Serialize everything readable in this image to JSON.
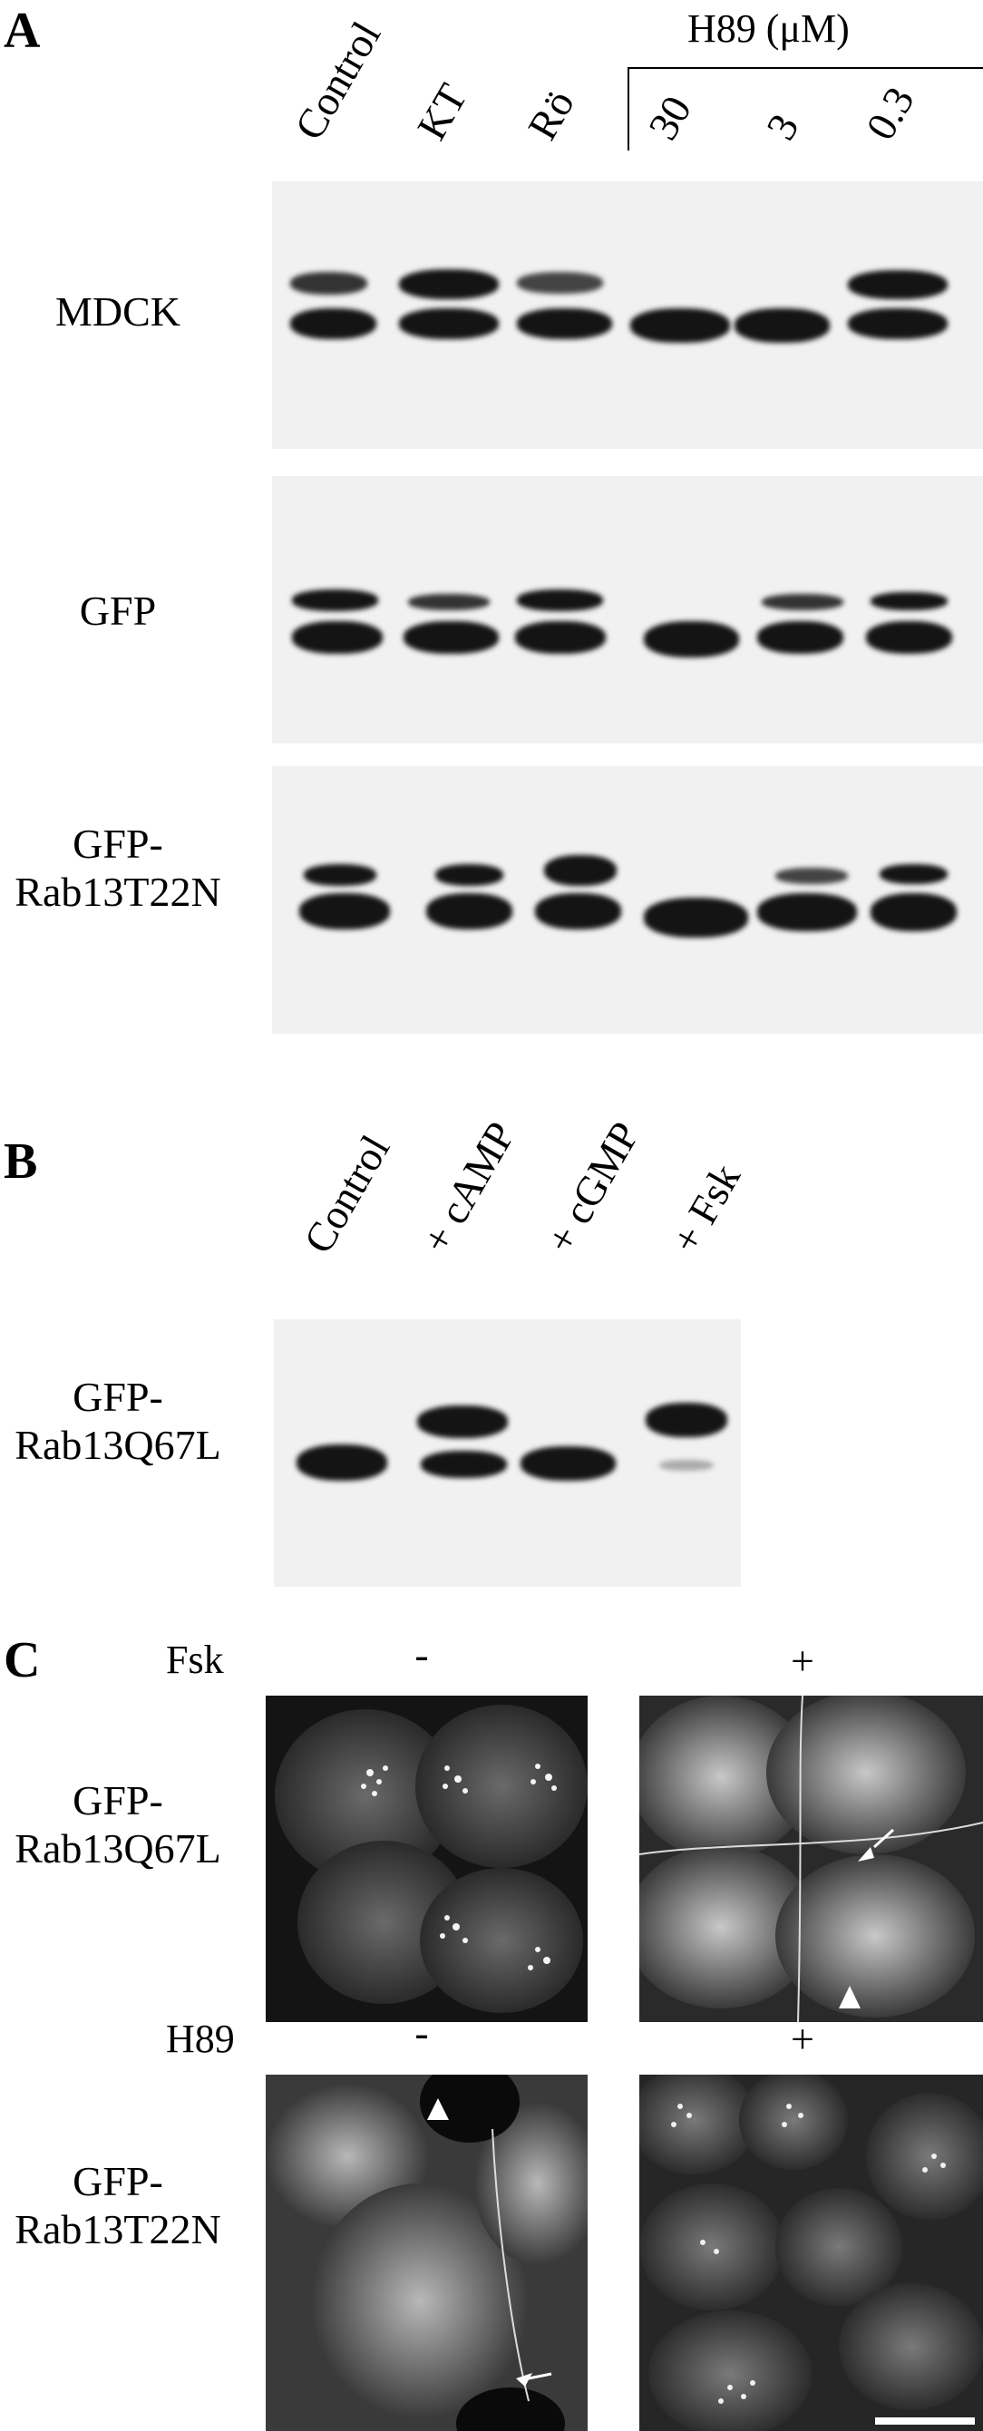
{
  "panelA": {
    "letter": "A",
    "h89_header": "H89 (μM)",
    "lanes": [
      "Control",
      "KT",
      "Rö"
    ],
    "h89_lanes": [
      "30",
      "3",
      "0.3"
    ],
    "rows": [
      {
        "label_line1": "MDCK",
        "label_line2": ""
      },
      {
        "label_line1": "GFP",
        "label_line2": ""
      },
      {
        "label_line1": "GFP-",
        "label_line2": "Rab13T22N"
      }
    ]
  },
  "panelB": {
    "letter": "B",
    "lanes": [
      "Control",
      "+ cAMP",
      "+ cGMP",
      "+ Fsk"
    ],
    "row": {
      "label_line1": "GFP-",
      "label_line2": "Rab13Q67L"
    }
  },
  "panelC": {
    "letter": "C",
    "row1": {
      "condition": "Fsk",
      "minus": "-",
      "plus": "+",
      "label_line1": "GFP-",
      "label_line2": "Rab13Q67L"
    },
    "row2": {
      "condition": "H89",
      "minus": "-",
      "plus": "+",
      "label_line1": "GFP-",
      "label_line2": "Rab13T22N"
    }
  }
}
